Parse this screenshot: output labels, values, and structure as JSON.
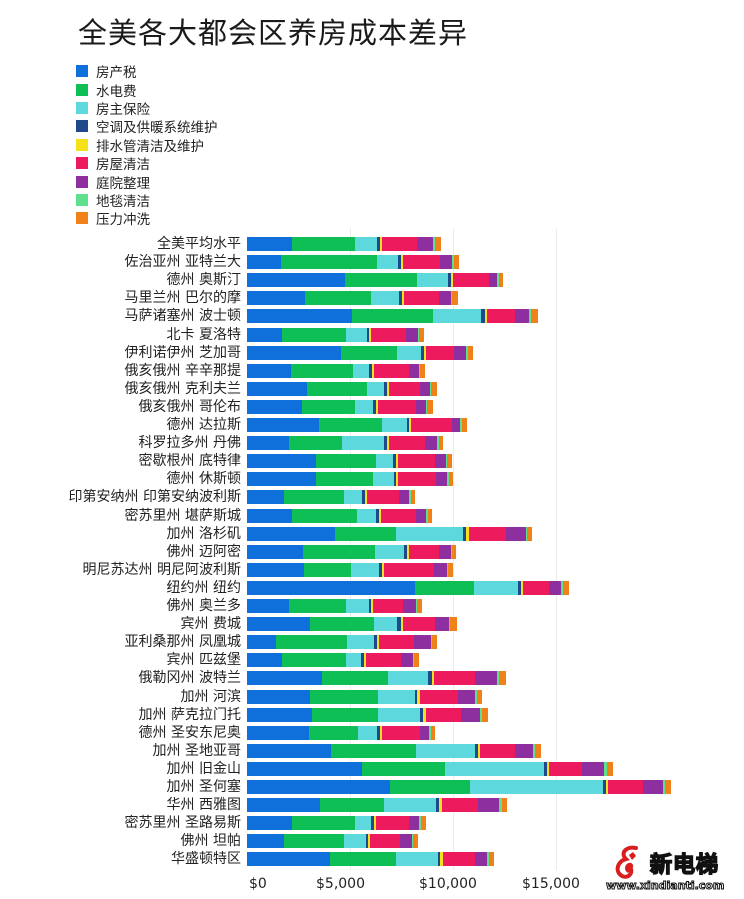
{
  "title": "全美各大都会区养房成本差异",
  "legend": [
    {
      "label": "房产税",
      "color": "#0f6fdb"
    },
    {
      "label": "水电费",
      "color": "#0ebf55"
    },
    {
      "label": "房主保险",
      "color": "#5dd8dc"
    },
    {
      "label": "空调及供暖系统维护",
      "color": "#1e4a8c"
    },
    {
      "label": "排水管清洁及维护",
      "color": "#f5e11a"
    },
    {
      "label": "房屋清洁",
      "color": "#ee1a5e"
    },
    {
      "label": "庭院整理",
      "color": "#8e2fa0"
    },
    {
      "label": "地毯清洁",
      "color": "#5fe08e"
    },
    {
      "label": "压力冲洗",
      "color": "#f08018"
    }
  ],
  "x_ticks": [
    "$0",
    "$5,000",
    "$10,000",
    "$15,000"
  ],
  "watermark": {
    "brand": "新电梯",
    "url": "www.xindianti.com"
  },
  "chart_data": {
    "type": "bar",
    "orientation": "horizontal",
    "stacked": true,
    "title": "全美各大都会区养房成本差异",
    "xlabel": "",
    "ylabel": "",
    "xlim": [
      0,
      21000
    ],
    "x_ticks": [
      0,
      5000,
      10000,
      15000
    ],
    "x_tick_labels": [
      "$0",
      "$5,000",
      "$10,000",
      "$15,000"
    ],
    "grid": true,
    "legend_position": "top-left",
    "categories": [
      "全美平均水平",
      "佐治亚州 亚特兰大",
      "德州 奥斯汀",
      "马里兰州 巴尔的摩",
      "马萨诸塞州 波士顿",
      "北卡 夏洛特",
      "伊利诺伊州 芝加哥",
      "俄亥俄州 辛辛那提",
      "俄亥俄州 克利夫兰",
      "俄亥俄州 哥伦布",
      "德州 达拉斯",
      "科罗拉多州 丹佛",
      "密歇根州 底特律",
      "德州 休斯顿",
      "印第安纳州 印第安纳波利斯",
      "密苏里州 堪萨斯城",
      "加州 洛杉矶",
      "佛州 迈阿密",
      "明尼苏达州 明尼阿波利斯",
      "纽约州 纽约",
      "佛州 奥兰多",
      "宾州 费城",
      "亚利桑那州 凤凰城",
      "宾州 匹兹堡",
      "俄勒冈州 波特兰",
      "加州 河滨",
      "加州 萨克拉门托",
      "德州 圣安东尼奥",
      "加州 圣地亚哥",
      "加州 旧金山",
      "加州 圣何塞",
      "华州 西雅图",
      "密苏里州 圣路易斯",
      "佛州 坦帕",
      "华盛顿特区"
    ],
    "series": [
      {
        "name": "房产税",
        "color": "#0f6fdb",
        "values": [
          2180,
          1650,
          4760,
          2820,
          5100,
          1700,
          4560,
          2140,
          2910,
          2670,
          3500,
          2040,
          3350,
          3350,
          1800,
          2180,
          4270,
          2720,
          2770,
          8160,
          2040,
          3060,
          1410,
          1700,
          3640,
          3060,
          3160,
          3010,
          4080,
          5580,
          6940,
          3540,
          2180,
          1800,
          4030
        ]
      },
      {
        "name": "水电费",
        "color": "#0ebf55",
        "values": [
          3060,
          4660,
          3500,
          3200,
          3930,
          3110,
          2720,
          3010,
          2910,
          2570,
          3060,
          2570,
          2910,
          2770,
          2910,
          3160,
          2960,
          3500,
          2280,
          2860,
          2770,
          3110,
          3450,
          3110,
          3200,
          3300,
          3200,
          2380,
          4130,
          4030,
          3880,
          3110,
          3060,
          2910,
          3200
        ]
      },
      {
        "name": "房主保险",
        "color": "#5dd8dc",
        "values": [
          1070,
          1020,
          1500,
          1360,
          2330,
          1020,
          1170,
          780,
          830,
          870,
          1210,
          2040,
          830,
          1020,
          870,
          920,
          3250,
          1410,
          1360,
          2140,
          1120,
          1120,
          1310,
          730,
          1940,
          1800,
          2040,
          920,
          2860,
          4810,
          6460,
          2520,
          780,
          1070,
          2040
        ]
      },
      {
        "name": "空调及供暖系统维护",
        "color": "#1e4a8c",
        "values": [
          150,
          150,
          150,
          150,
          190,
          100,
          150,
          150,
          150,
          150,
          100,
          150,
          150,
          100,
          150,
          150,
          150,
          150,
          150,
          150,
          100,
          190,
          150,
          150,
          190,
          100,
          150,
          150,
          150,
          150,
          150,
          150,
          150,
          100,
          100
        ]
      },
      {
        "name": "排水管清洁及维护",
        "color": "#f5e11a",
        "values": [
          100,
          100,
          100,
          100,
          100,
          100,
          100,
          100,
          100,
          100,
          100,
          100,
          100,
          100,
          100,
          100,
          150,
          100,
          100,
          100,
          100,
          100,
          100,
          100,
          100,
          150,
          150,
          100,
          100,
          100,
          100,
          150,
          100,
          100,
          150
        ]
      },
      {
        "name": "房屋清洁",
        "color": "#ee1a5e",
        "values": [
          1700,
          1800,
          1750,
          1700,
          1360,
          1700,
          1360,
          1700,
          1500,
          1840,
          1990,
          1750,
          1800,
          1840,
          1550,
          1700,
          1800,
          1460,
          2430,
          1260,
          1460,
          1550,
          1700,
          1700,
          1990,
          1840,
          1700,
          1840,
          1700,
          1600,
          1700,
          1750,
          1600,
          1460,
          1550
        ]
      },
      {
        "name": "庭院整理",
        "color": "#8e2fa0",
        "values": [
          780,
          580,
          390,
          580,
          680,
          580,
          580,
          490,
          490,
          490,
          390,
          580,
          530,
          530,
          490,
          490,
          970,
          580,
          630,
          580,
          630,
          680,
          830,
          580,
          1070,
          830,
          920,
          440,
          870,
          1070,
          970,
          1020,
          490,
          580,
          580
        ]
      },
      {
        "name": "地毯清洁",
        "color": "#5fe08e",
        "values": [
          70,
          100,
          100,
          50,
          100,
          50,
          100,
          50,
          50,
          50,
          100,
          100,
          50,
          100,
          100,
          100,
          50,
          50,
          50,
          100,
          50,
          50,
          50,
          50,
          100,
          100,
          100,
          100,
          100,
          150,
          100,
          150,
          100,
          50,
          100
        ]
      },
      {
        "name": "压力冲洗",
        "color": "#f08018",
        "values": [
          290,
          240,
          200,
          290,
          340,
          240,
          240,
          240,
          290,
          290,
          240,
          200,
          240,
          200,
          200,
          200,
          240,
          200,
          240,
          290,
          240,
          340,
          240,
          240,
          340,
          240,
          290,
          200,
          290,
          290,
          290,
          240,
          240,
          240,
          240
        ]
      }
    ]
  }
}
